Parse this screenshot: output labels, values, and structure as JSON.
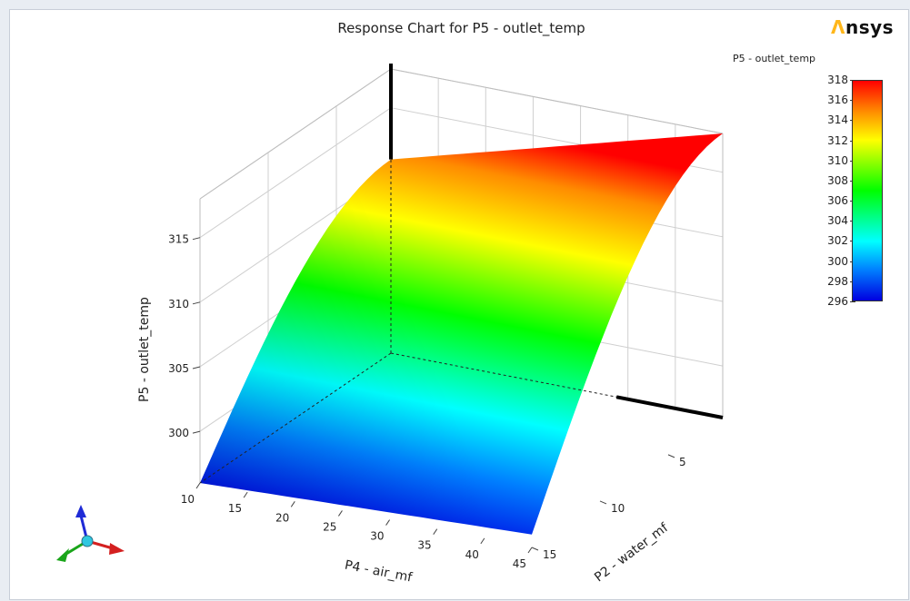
{
  "brand": {
    "mark": "Λ",
    "text": "nsys"
  },
  "colors": {
    "frame_bg": "#ffffff",
    "page_bg": "#e9edf3",
    "grid": "#cfcfcf",
    "axis": "#000000"
  },
  "chart_data": {
    "type": "surface",
    "title": "Response Chart for P5 - outlet_temp",
    "xlabel": "P4 - air_mf",
    "ylabel": "P2 - water_mf",
    "zlabel": "P5 - outlet_temp",
    "xlim": [
      10,
      45
    ],
    "ylim": [
      1,
      15
    ],
    "zlim": [
      296,
      318
    ],
    "x_ticks": [
      10,
      15,
      20,
      25,
      30,
      35,
      40,
      45
    ],
    "y_ticks": [
      5,
      10,
      15
    ],
    "z_ticks": [
      300,
      305,
      310,
      315
    ],
    "corner_values": [
      {
        "x": 10,
        "y": 15,
        "z": 296
      },
      {
        "x": 10,
        "y": 1,
        "z": 311
      },
      {
        "x": 45,
        "y": 1,
        "z": 318
      },
      {
        "x": 45,
        "y": 15,
        "z": 297
      }
    ],
    "legend": {
      "title": "P5 - outlet_temp",
      "ticks": [
        318,
        316,
        314,
        312,
        310,
        308,
        306,
        304,
        302,
        300,
        298,
        296
      ],
      "placement": "top-right"
    },
    "grid": true
  }
}
